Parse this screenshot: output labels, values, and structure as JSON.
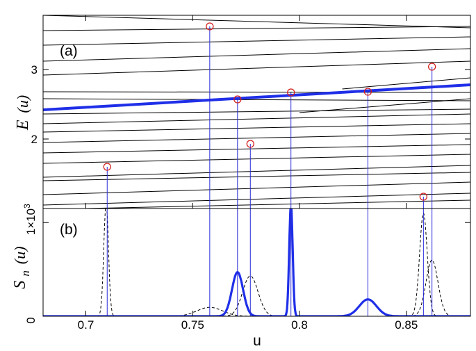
{
  "chart_data": [
    {
      "panel": "(a)",
      "type": "line",
      "ylabel_main": "E",
      "ylabel_arg": "(u)",
      "xlim": [
        0.68,
        0.88
      ],
      "ylim": [
        1.0,
        3.78
      ],
      "yticks": [
        {
          "value": 2,
          "label": "2"
        },
        {
          "value": 3,
          "label": "3"
        }
      ],
      "series": [
        {
          "role": "level",
          "x": [
            0.68,
            0.88
          ],
          "y": [
            3.78,
            3.6
          ]
        },
        {
          "role": "level",
          "x": [
            0.68,
            0.88
          ],
          "y": [
            3.56,
            3.62
          ]
        },
        {
          "role": "level",
          "x": [
            0.68,
            0.88
          ],
          "y": [
            3.35,
            3.47
          ]
        },
        {
          "role": "level",
          "x": [
            0.68,
            0.88
          ],
          "y": [
            3.12,
            3.3
          ]
        },
        {
          "role": "level",
          "x": [
            0.68,
            0.88
          ],
          "y": [
            2.92,
            3.12
          ]
        },
        {
          "role": "level",
          "x": [
            0.68,
            0.88
          ],
          "y": [
            2.68,
            2.67
          ]
        },
        {
          "role": "level",
          "x": [
            0.68,
            0.88
          ],
          "y": [
            2.58,
            2.55
          ]
        },
        {
          "role": "level",
          "x": [
            0.68,
            0.88
          ],
          "y": [
            2.36,
            2.43
          ]
        },
        {
          "role": "level",
          "x": [
            0.68,
            0.88
          ],
          "y": [
            2.22,
            2.36
          ]
        },
        {
          "role": "level",
          "x": [
            0.68,
            0.88
          ],
          "y": [
            2.1,
            2.22
          ]
        },
        {
          "role": "level",
          "x": [
            0.68,
            0.88
          ],
          "y": [
            1.95,
            2.08
          ]
        },
        {
          "role": "level",
          "x": [
            0.68,
            0.88
          ],
          "y": [
            1.8,
            1.92
          ]
        },
        {
          "role": "level",
          "x": [
            0.68,
            0.88
          ],
          "y": [
            1.65,
            1.78
          ]
        },
        {
          "role": "level",
          "x": [
            0.68,
            0.88
          ],
          "y": [
            1.45,
            1.62
          ]
        },
        {
          "role": "level",
          "x": [
            0.68,
            0.88
          ],
          "y": [
            1.4,
            1.52
          ]
        },
        {
          "role": "level",
          "x": [
            0.68,
            0.88
          ],
          "y": [
            1.2,
            1.38
          ]
        },
        {
          "role": "level",
          "x": [
            0.68,
            0.88
          ],
          "y": [
            1.05,
            1.22
          ]
        },
        {
          "role": "level",
          "x": [
            0.7,
            0.88
          ],
          "y": [
            1.0,
            1.12
          ]
        },
        {
          "role": "level",
          "x": [
            0.8,
            0.88
          ],
          "y": [
            2.38,
            2.58
          ]
        },
        {
          "role": "level",
          "x": [
            0.82,
            0.88
          ],
          "y": [
            2.72,
            2.88
          ]
        },
        {
          "role": "highlight",
          "x": [
            0.68,
            0.88
          ],
          "y": [
            2.42,
            2.78
          ]
        }
      ],
      "markers": [
        {
          "x": 0.71,
          "y": 1.6
        },
        {
          "x": 0.758,
          "y": 3.62
        },
        {
          "x": 0.771,
          "y": 2.57
        },
        {
          "x": 0.777,
          "y": 1.93
        },
        {
          "x": 0.796,
          "y": 2.67
        },
        {
          "x": 0.832,
          "y": 2.68
        },
        {
          "x": 0.858,
          "y": 1.17
        },
        {
          "x": 0.862,
          "y": 3.04
        }
      ]
    },
    {
      "panel": "(b)",
      "type": "line",
      "ylabel_main": "S",
      "ylabel_sub": "n",
      "ylabel_arg": "(u)",
      "xlabel": "u",
      "xlim": [
        0.68,
        0.88
      ],
      "ylim": [
        0,
        1150
      ],
      "xticks": [
        0.7,
        0.75,
        0.8,
        0.85
      ],
      "xtick_labels": [
        "0.7",
        "0.75",
        "0.8",
        "0.85"
      ],
      "yticks": [
        {
          "value": 0,
          "label": "0"
        },
        {
          "value": 1000,
          "label": "1×10",
          "exp": "3"
        }
      ],
      "series": [
        {
          "role": "dashed",
          "peaks": [
            {
              "center": 0.7095,
              "amp": 1200,
              "width": 0.0011
            }
          ]
        },
        {
          "role": "dashed",
          "peaks": [
            {
              "center": 0.758,
              "amp": 95,
              "width": 0.006
            }
          ]
        },
        {
          "role": "dashed",
          "peaks": [
            {
              "center": 0.777,
              "amp": 430,
              "width": 0.0036
            }
          ]
        },
        {
          "role": "dashed",
          "peaks": [
            {
              "center": 0.858,
              "amp": 1100,
              "width": 0.0018
            }
          ]
        },
        {
          "role": "dashed",
          "peaks": [
            {
              "center": 0.862,
              "amp": 600,
              "width": 0.0028
            }
          ]
        },
        {
          "role": "highlight",
          "peaks": [
            {
              "center": 0.771,
              "amp": 470,
              "width": 0.0026
            },
            {
              "center": 0.796,
              "amp": 1200,
              "width": 0.0008
            },
            {
              "center": 0.832,
              "amp": 180,
              "width": 0.004
            }
          ]
        }
      ]
    }
  ],
  "colors": {
    "highlight": "#1f2fe8",
    "marker": "#d42020",
    "level": "#000000",
    "connector": "#2a2ad8"
  }
}
